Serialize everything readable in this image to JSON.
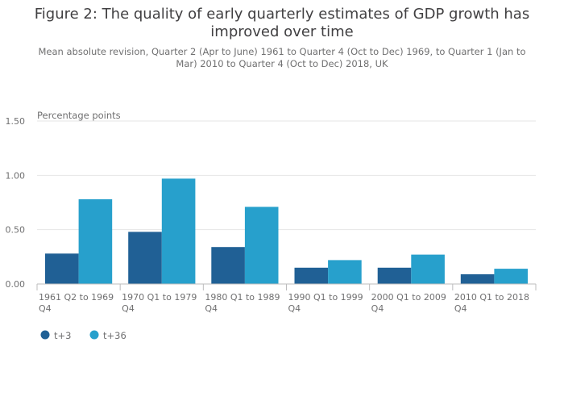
{
  "title": "Figure 2: The quality of early quarterly estimates of GDP growth has improved over time",
  "subtitle": "Mean absolute revision, Quarter 2 (Apr to June) 1961 to Quarter 4 (Oct to Dec) 1969, to Quarter 1 (Jan to Mar) 2010 to Quarter 4 (Oct to Dec) 2018, UK",
  "chart_data": {
    "type": "bar",
    "title": "Figure 2: The quality of early quarterly estimates of GDP growth has improved over time",
    "subtitle": "Mean absolute revision, Quarter 2 (Apr to June) 1961 to Quarter 4 (Oct to Dec) 1969, to Quarter 1 (Jan to Mar) 2010 to Quarter 4 (Oct to Dec) 2018, UK",
    "ylabel": "Percentage points",
    "xlabel": "",
    "categories": [
      "1961 Q2 to 1969 Q4",
      "1970 Q1 to 1979 Q4",
      "1980 Q1 to 1989 Q4",
      "1990 Q1 to 1999 Q4",
      "2000 Q1 to 2009 Q4",
      "2010 Q1 to 2018 Q4"
    ],
    "category_lines": [
      [
        "1961 Q2 to 1969",
        "Q4"
      ],
      [
        "1970 Q1 to 1979",
        "Q4"
      ],
      [
        "1980 Q1 to 1989",
        "Q4"
      ],
      [
        "1990 Q1 to 1999",
        "Q4"
      ],
      [
        "2000 Q1 to 2009",
        "Q4"
      ],
      [
        "2010 Q1 to 2018",
        "Q4"
      ]
    ],
    "series": [
      {
        "name": "t+3",
        "color": "#206095",
        "values": [
          0.28,
          0.48,
          0.34,
          0.15,
          0.15,
          0.09
        ]
      },
      {
        "name": "t+36",
        "color": "#27a0cc",
        "values": [
          0.78,
          0.97,
          0.71,
          0.22,
          0.27,
          0.14
        ]
      }
    ],
    "ylim": [
      0,
      1.5
    ],
    "yticks": [
      0,
      0.5,
      1.0,
      1.5
    ],
    "ytick_labels": [
      "0.00",
      "0.50",
      "1.00",
      "1.50"
    ],
    "grid": true,
    "legend_position": "bottom-left",
    "colors": {
      "axis": "#bcbcbd",
      "grid": "#e6e6e6",
      "text": "#707071"
    }
  }
}
